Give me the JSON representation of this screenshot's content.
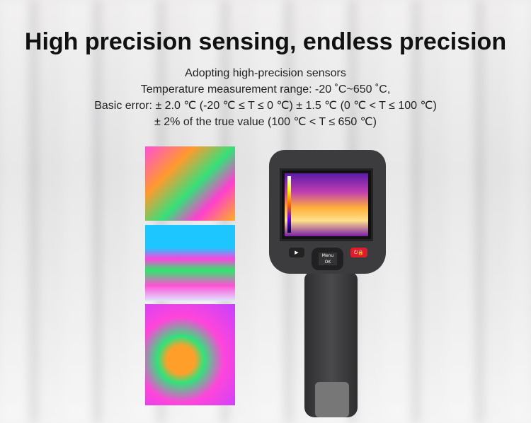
{
  "headline": "High precision sensing, endless precision",
  "description": [
    "Adopting high-precision sensors",
    "Temperature measurement range: -20 ˚C~650 ˚C,",
    "Basic error: ± 2.0 ℃ (-20 ℃ ≤ T ≤ 0 ℃) ± 1.5 ℃ (0 ℃ < T ≤ 100 ℃)",
    "± 2% of the true value (100 ℃ < T ≤ 650 ℃)"
  ],
  "device": {
    "menu_label": "Menu",
    "ok_label": "OK",
    "play_icon": "play-icon",
    "power_icon": "power-lock-icon",
    "accent": "#e21b2b"
  }
}
